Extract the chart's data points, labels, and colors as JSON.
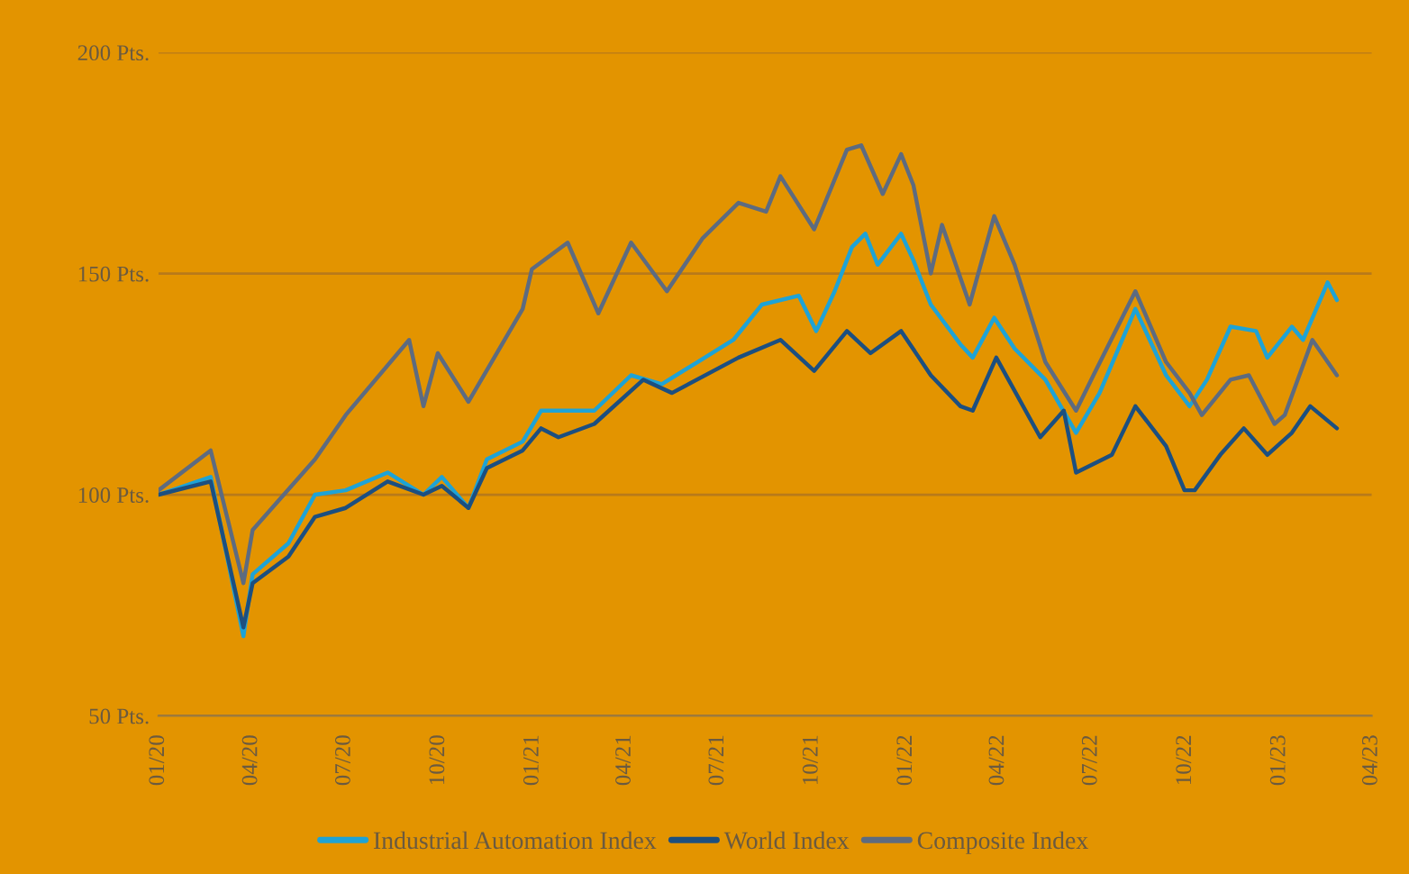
{
  "chart_data": {
    "type": "line",
    "series": [
      {
        "name": "Industrial Automation Index",
        "color": "#1ea3d6",
        "x": [
          "2020-01-01",
          "2020-02-21",
          "2020-03-24",
          "2020-04-02",
          "2020-05-07",
          "2020-06-02",
          "2020-07-02",
          "2020-08-12",
          "2020-09-16",
          "2020-10-04",
          "2020-10-30",
          "2020-11-17",
          "2020-12-22",
          "2021-01-09",
          "2021-03-02",
          "2021-04-07",
          "2021-05-07",
          "2021-06-11",
          "2021-07-16",
          "2021-08-13",
          "2021-09-18",
          "2021-10-05",
          "2021-10-23",
          "2021-11-09",
          "2021-11-22",
          "2021-12-04",
          "2021-12-27",
          "2022-01-08",
          "2022-01-25",
          "2022-02-23",
          "2022-03-07",
          "2022-03-28",
          "2022-04-17",
          "2022-05-17",
          "2022-06-16",
          "2022-07-09",
          "2022-08-13",
          "2022-09-12",
          "2022-10-05",
          "2022-10-22",
          "2022-11-14",
          "2022-12-09",
          "2022-12-20",
          "2023-01-13",
          "2023-01-24",
          "2023-02-17",
          "2023-02-26"
        ],
        "values": [
          100,
          104,
          68,
          82,
          89,
          100,
          101,
          105,
          100,
          104,
          97,
          108,
          112,
          119,
          119,
          127,
          125,
          130,
          135,
          143,
          145,
          137,
          146,
          156,
          159,
          152,
          159,
          153,
          143,
          134,
          131,
          140,
          133,
          126,
          114,
          123,
          142,
          127,
          120,
          126,
          138,
          137,
          131,
          138,
          135,
          148,
          144
        ]
      },
      {
        "name": "World Index",
        "color": "#1c4f80",
        "x": [
          "2020-01-01",
          "2020-02-21",
          "2020-03-24",
          "2020-04-02",
          "2020-05-07",
          "2020-06-02",
          "2020-07-02",
          "2020-08-12",
          "2020-09-16",
          "2020-10-04",
          "2020-10-30",
          "2020-11-17",
          "2020-12-22",
          "2021-01-09",
          "2021-01-26",
          "2021-03-02",
          "2021-04-19",
          "2021-05-17",
          "2021-07-21",
          "2021-08-31",
          "2021-10-03",
          "2021-11-04",
          "2021-11-27",
          "2021-12-27",
          "2022-01-25",
          "2022-02-23",
          "2022-03-07",
          "2022-03-30",
          "2022-05-12",
          "2022-06-04",
          "2022-06-16",
          "2022-07-21",
          "2022-08-13",
          "2022-09-12",
          "2022-09-30",
          "2022-10-10",
          "2022-11-04",
          "2022-11-27",
          "2022-12-20",
          "2023-01-13",
          "2023-01-31",
          "2023-02-26"
        ],
        "values": [
          100,
          103,
          70,
          80,
          86,
          95,
          97,
          103,
          100,
          102,
          97,
          106,
          110,
          115,
          113,
          116,
          126,
          123,
          131,
          135,
          128,
          137,
          132,
          137,
          127,
          120,
          119,
          131,
          113,
          119,
          105,
          109,
          120,
          111,
          101,
          101,
          109,
          115,
          109,
          114,
          120,
          115
        ]
      },
      {
        "name": "Composite Index",
        "color": "#5d6b80",
        "x": [
          "2020-01-01",
          "2020-02-21",
          "2020-03-24",
          "2020-04-02",
          "2020-06-02",
          "2020-07-02",
          "2020-09-02",
          "2020-09-16",
          "2020-09-30",
          "2020-10-30",
          "2020-12-22",
          "2020-12-31",
          "2021-02-04",
          "2021-03-06",
          "2021-04-07",
          "2021-05-12",
          "2021-06-16",
          "2021-07-21",
          "2021-08-17",
          "2021-08-31",
          "2021-10-03",
          "2021-11-04",
          "2021-11-18",
          "2021-12-09",
          "2021-12-27",
          "2022-01-08",
          "2022-01-25",
          "2022-02-05",
          "2022-03-04",
          "2022-03-28",
          "2022-04-17",
          "2022-05-17",
          "2022-06-16",
          "2022-07-03",
          "2022-08-13",
          "2022-09-12",
          "2022-10-05",
          "2022-10-17",
          "2022-11-14",
          "2022-12-02",
          "2022-12-27",
          "2023-01-06",
          "2023-02-02",
          "2023-02-17",
          "2023-02-26"
        ],
        "values": [
          101,
          110,
          80,
          92,
          108,
          118,
          135,
          120,
          132,
          121,
          142,
          151,
          157,
          141,
          157,
          146,
          158,
          166,
          164,
          172,
          160,
          178,
          179,
          168,
          177,
          170,
          150,
          161,
          143,
          163,
          152,
          130,
          119,
          127,
          146,
          130,
          123,
          118,
          126,
          127,
          116,
          118,
          135,
          130,
          127
        ]
      }
    ],
    "xlim": [
      "2020-01-01",
      "2023-04-01"
    ],
    "xticks": [
      {
        "value": "2020-01-01",
        "label": "01/20"
      },
      {
        "value": "2020-04-01",
        "label": "04/20"
      },
      {
        "value": "2020-07-01",
        "label": "07/20"
      },
      {
        "value": "2020-10-01",
        "label": "10/20"
      },
      {
        "value": "2021-01-01",
        "label": "01/21"
      },
      {
        "value": "2021-04-01",
        "label": "04/21"
      },
      {
        "value": "2021-07-01",
        "label": "07/21"
      },
      {
        "value": "2021-10-01",
        "label": "10/21"
      },
      {
        "value": "2022-01-01",
        "label": "01/22"
      },
      {
        "value": "2022-04-01",
        "label": "04/22"
      },
      {
        "value": "2022-07-01",
        "label": "07/22"
      },
      {
        "value": "2022-10-01",
        "label": "10/22"
      },
      {
        "value": "2023-01-01",
        "label": "01/23"
      },
      {
        "value": "2023-04-01",
        "label": "04/23"
      }
    ],
    "ylim": [
      50,
      200
    ],
    "yticks": [
      {
        "value": 50,
        "label": "50 Pts."
      },
      {
        "value": 100,
        "label": "100 Pts."
      },
      {
        "value": 150,
        "label": "150 Pts."
      },
      {
        "value": 200,
        "label": "200 Pts."
      }
    ],
    "grid": "y",
    "legend": "bottom",
    "marker": "none",
    "line_style": "solid"
  }
}
